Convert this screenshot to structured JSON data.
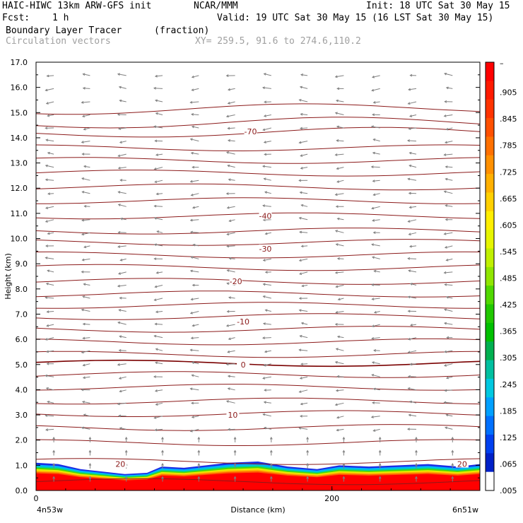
{
  "header": {
    "title": "HAIC-HIWC 13km ARW-GFS init",
    "org": "NCAR/MMM",
    "init": "Init: 18 UTC Sat 30 May 15",
    "fcst_label": "Fcst:",
    "fcst_value": "1 h",
    "valid": "Valid: 19 UTC Sat 30 May 15 (16 LST Sat 30 May 15)",
    "field": "Boundary Layer Tracer",
    "field_units": "(fraction)",
    "overlay": "Circulation vectors",
    "xy": "XY= 259.5, 91.6 to 274.6,110.2"
  },
  "chart_data": {
    "type": "heatmap",
    "ylabel": "Height (km)",
    "xlabel": "Distance (km)",
    "x_start_label": "4n53w",
    "x_end_label": "6n51w",
    "ylim": [
      0,
      17
    ],
    "xlim": [
      0,
      300
    ],
    "yticks": [
      "0.0",
      "1.0",
      "2.0",
      "3.0",
      "4.0",
      "5.0",
      "6.0",
      "7.0",
      "8.0",
      "9.0",
      "10.0",
      "11.0",
      "12.0",
      "13.0",
      "14.0",
      "15.0",
      "16.0",
      "17.0"
    ],
    "xticks": [
      {
        "value": 0,
        "label": "0"
      },
      {
        "value": 200,
        "label": "200"
      }
    ],
    "isotherm_labels": [
      {
        "text": "-70",
        "x": 145,
        "y": 14.25
      },
      {
        "text": "-40",
        "x": 155,
        "y": 10.9
      },
      {
        "text": "-30",
        "x": 155,
        "y": 9.6
      },
      {
        "text": "-20",
        "x": 135,
        "y": 8.3
      },
      {
        "text": "-10",
        "x": 140,
        "y": 6.7
      },
      {
        "text": "0",
        "x": 140,
        "y": 5.0
      },
      {
        "text": "10",
        "x": 133,
        "y": 3.0
      },
      {
        "text": "20",
        "x": 57,
        "y": 1.05
      },
      {
        "text": "20",
        "x": 288,
        "y": 1.05
      }
    ],
    "isotherm_heights_km": [
      0.35,
      1.15,
      1.9,
      2.5,
      3.05,
      3.55,
      4.1,
      4.6,
      5.05,
      5.4,
      5.9,
      6.4,
      6.9,
      7.35,
      7.8,
      8.3,
      8.85,
      9.35,
      9.85,
      10.3,
      10.9,
      11.5,
      12.05,
      12.6,
      13.1,
      13.6,
      14.2,
      14.6,
      15.15
    ],
    "tracer_top_km": [
      [
        0,
        1.1
      ],
      [
        15,
        1.05
      ],
      [
        30,
        0.85
      ],
      [
        45,
        0.75
      ],
      [
        60,
        0.65
      ],
      [
        75,
        0.7
      ],
      [
        85,
        0.95
      ],
      [
        100,
        0.9
      ],
      [
        115,
        1.0
      ],
      [
        130,
        1.1
      ],
      [
        150,
        1.15
      ],
      [
        170,
        0.95
      ],
      [
        190,
        0.85
      ],
      [
        205,
        1.0
      ],
      [
        225,
        0.95
      ],
      [
        245,
        1.0
      ],
      [
        265,
        1.05
      ],
      [
        285,
        0.95
      ],
      [
        300,
        1.05
      ]
    ],
    "colorbar": {
      "top_label": "–",
      "labels": [
        ".905",
        ".845",
        ".785",
        ".725",
        ".665",
        ".605",
        ".545",
        ".485",
        ".425",
        ".365",
        ".305",
        ".245",
        ".185",
        ".125",
        ".065",
        ".005"
      ],
      "colors": [
        "#ff0000",
        "#ff1a00",
        "#ff3300",
        "#ff5000",
        "#ff7000",
        "#ff9000",
        "#ffb000",
        "#ffd000",
        "#ffee00",
        "#e6f500",
        "#c0f000",
        "#90e600",
        "#50d800",
        "#20c800",
        "#00c000",
        "#00b050",
        "#00c0a0",
        "#00c8e0",
        "#00a0ff",
        "#0070ff",
        "#0040f0",
        "#0020c8",
        "#ffffff"
      ]
    }
  }
}
